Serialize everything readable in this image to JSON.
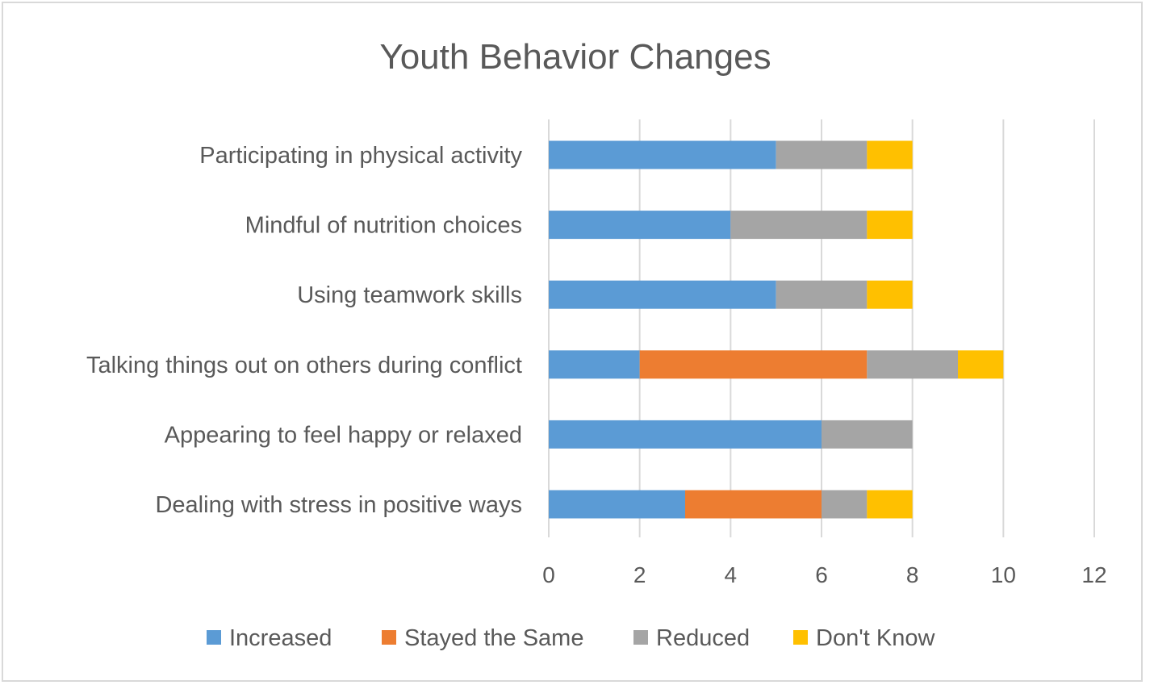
{
  "chart_data": {
    "type": "bar",
    "orientation": "horizontal",
    "stacked": true,
    "title": "Youth Behavior Changes",
    "categories": [
      "Participating in physical activity",
      "Mindful of nutrition choices",
      "Using teamwork skills",
      "Talking things out on others during conflict",
      "Appearing to feel happy or relaxed",
      "Dealing with stress in positive ways"
    ],
    "series": [
      {
        "name": "Increased",
        "color": "#5b9bd5",
        "values": [
          5,
          4,
          5,
          2,
          6,
          3
        ]
      },
      {
        "name": "Stayed the Same",
        "color": "#ed7d31",
        "values": [
          0,
          0,
          0,
          5,
          0,
          3
        ]
      },
      {
        "name": "Reduced",
        "color": "#a5a5a5",
        "values": [
          2,
          3,
          2,
          2,
          2,
          1
        ]
      },
      {
        "name": "Don't Know",
        "color": "#ffc000",
        "values": [
          1,
          1,
          1,
          1,
          0,
          1
        ]
      }
    ],
    "xlim": [
      0,
      12
    ],
    "xticks": [
      "0",
      "2",
      "4",
      "6",
      "8",
      "10",
      "12"
    ],
    "grid": "vertical",
    "legend": "bottom"
  }
}
